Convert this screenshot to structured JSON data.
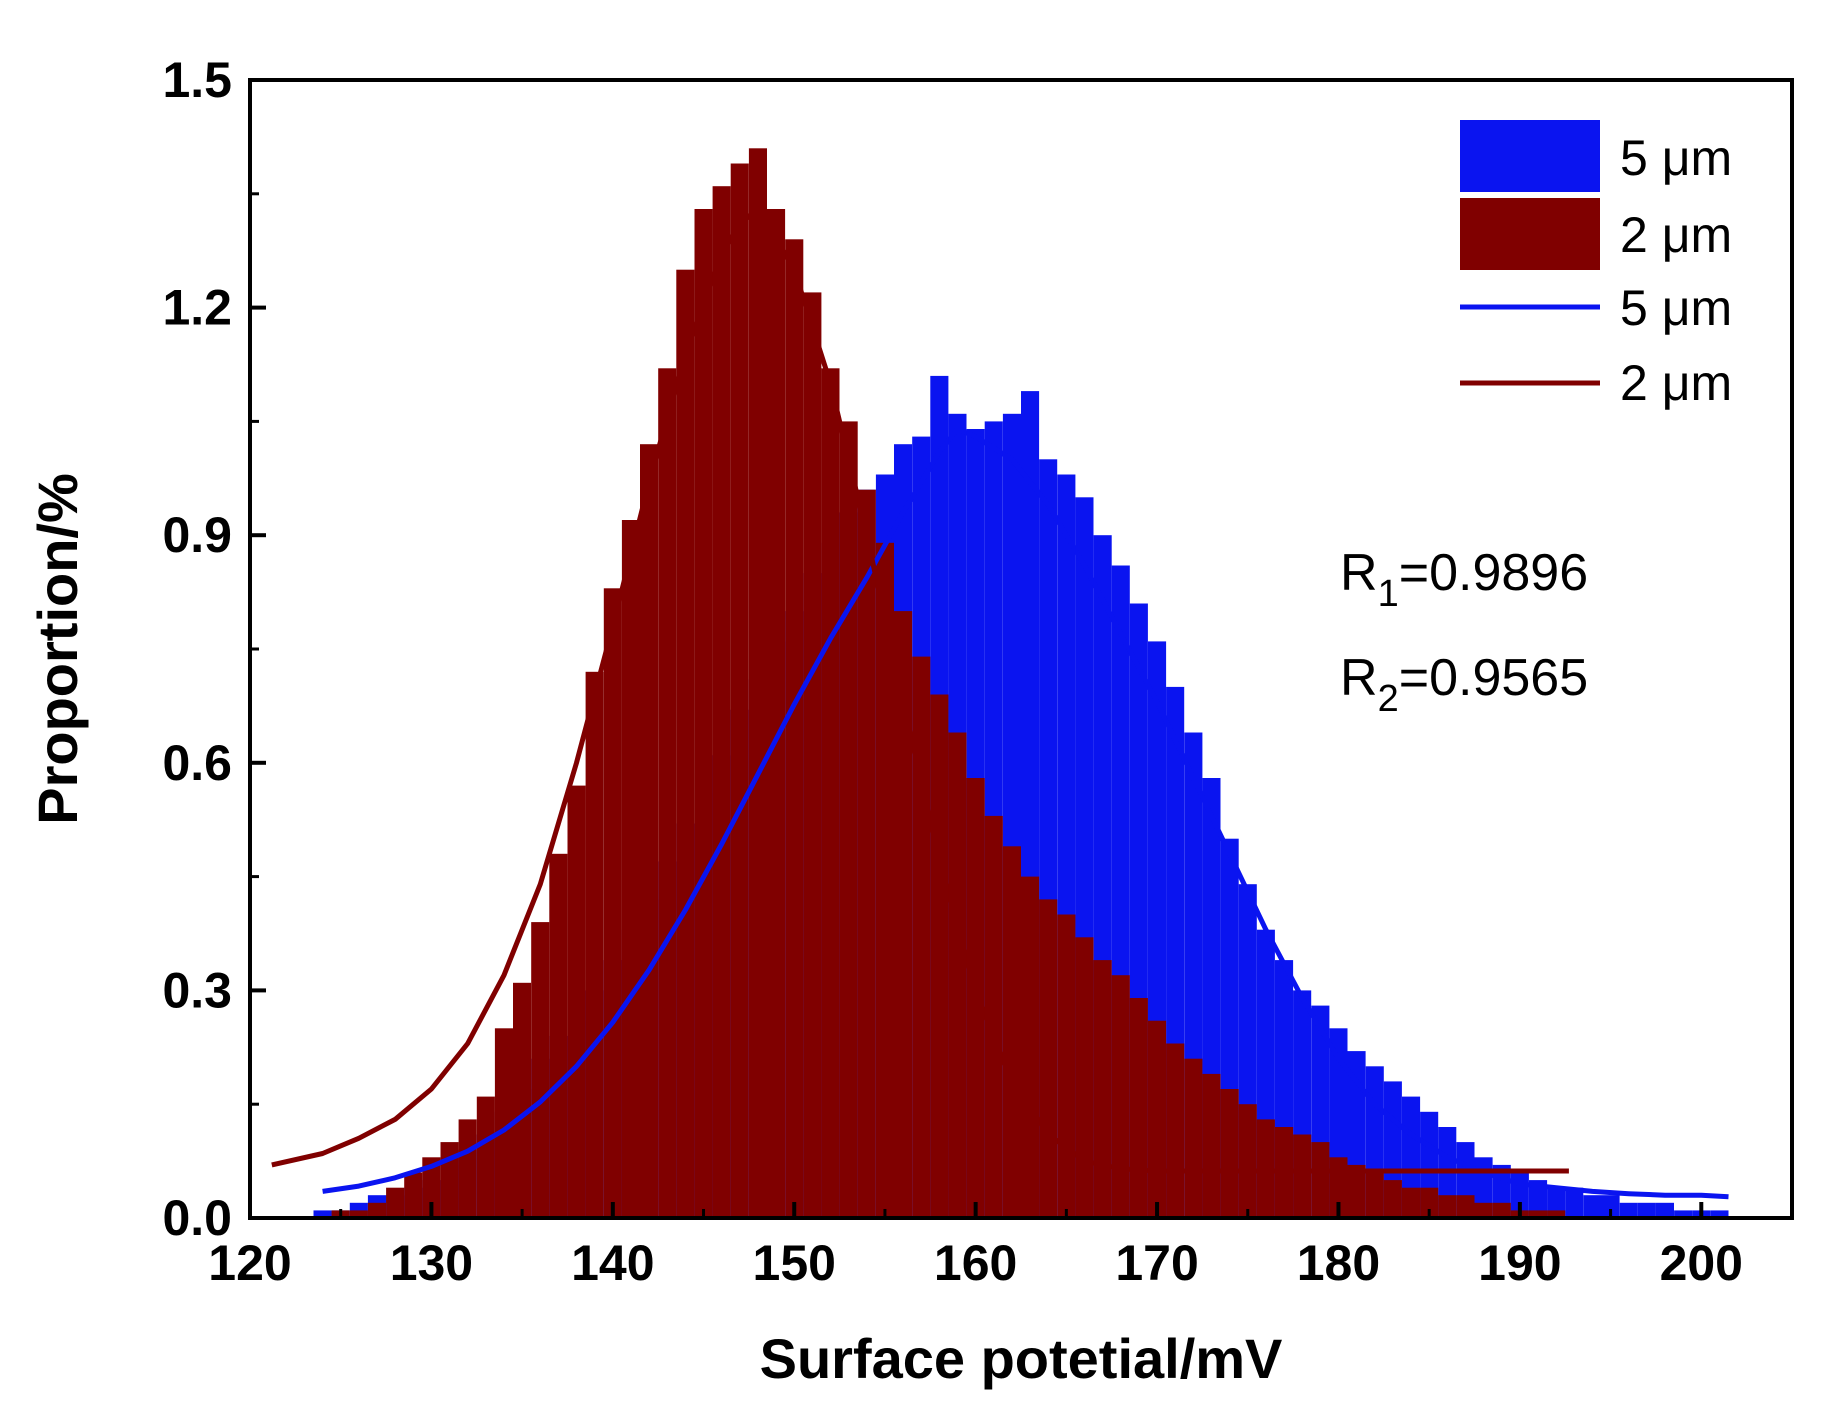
{
  "chart_data": {
    "type": "bar",
    "title": "",
    "xlabel": "Surface potetial/mV",
    "ylabel": "Proportion/%",
    "xlim": [
      120,
      205
    ],
    "ylim": [
      0,
      1.5
    ],
    "xticks": [
      120,
      130,
      140,
      150,
      160,
      170,
      180,
      190,
      200
    ],
    "xtick_labels": [
      "120",
      "130",
      "140",
      "150",
      "160",
      "170",
      "180",
      "190",
      "200"
    ],
    "yticks": [
      0.0,
      0.3,
      0.6,
      0.9,
      1.2,
      1.5
    ],
    "ytick_labels": [
      "0.0",
      "0.3",
      "0.6",
      "0.9",
      "1.2",
      "1.5"
    ],
    "grid": false,
    "legend_position": "top-right",
    "histograms": [
      {
        "name": "5 μm",
        "legend_label": "5 μm",
        "color": "#0a14f0",
        "bin_width": 0.4,
        "x": [
          124,
          125,
          126,
          127,
          128,
          129,
          130,
          131,
          132,
          133,
          134,
          135,
          136,
          137,
          138,
          139,
          140,
          141,
          142,
          143,
          144,
          145,
          146,
          147,
          148,
          149,
          150,
          151,
          152,
          153,
          154,
          155,
          156,
          157,
          158,
          159,
          160,
          161,
          162,
          163,
          164,
          165,
          166,
          167,
          168,
          169,
          170,
          171,
          172,
          173,
          174,
          175,
          176,
          177,
          178,
          179,
          180,
          181,
          182,
          183,
          184,
          185,
          186,
          187,
          188,
          189,
          190,
          191,
          192,
          193,
          194,
          195,
          196,
          197,
          198,
          199,
          200,
          201
        ],
        "values": [
          0.01,
          0.01,
          0.02,
          0.03,
          0.03,
          0.04,
          0.05,
          0.07,
          0.09,
          0.11,
          0.14,
          0.17,
          0.21,
          0.24,
          0.26,
          0.3,
          0.34,
          0.38,
          0.42,
          0.47,
          0.52,
          0.56,
          0.61,
          0.67,
          0.71,
          0.76,
          0.8,
          0.85,
          0.89,
          0.93,
          0.96,
          0.98,
          1.02,
          1.03,
          1.11,
          1.06,
          1.04,
          1.05,
          1.06,
          1.09,
          1.0,
          0.98,
          0.95,
          0.9,
          0.86,
          0.81,
          0.76,
          0.7,
          0.64,
          0.58,
          0.5,
          0.44,
          0.38,
          0.34,
          0.3,
          0.28,
          0.25,
          0.22,
          0.2,
          0.18,
          0.16,
          0.14,
          0.12,
          0.1,
          0.08,
          0.07,
          0.06,
          0.05,
          0.04,
          0.04,
          0.03,
          0.03,
          0.02,
          0.02,
          0.02,
          0.01,
          0.01,
          0.01
        ]
      },
      {
        "name": "2 μm",
        "legend_label": "2 μm",
        "color": "#800000",
        "bin_width": 0.4,
        "x": [
          124,
          125,
          126,
          127,
          128,
          129,
          130,
          131,
          132,
          133,
          134,
          135,
          136,
          137,
          138,
          139,
          140,
          141,
          142,
          143,
          144,
          145,
          146,
          147,
          148,
          149,
          150,
          151,
          152,
          153,
          154,
          155,
          156,
          157,
          158,
          159,
          160,
          161,
          162,
          163,
          164,
          165,
          166,
          167,
          168,
          169,
          170,
          171,
          172,
          173,
          174,
          175,
          176,
          177,
          178,
          179,
          180,
          181,
          182,
          183,
          184,
          185,
          186,
          187,
          188,
          189,
          190,
          191,
          192
        ],
        "values": [
          0.0,
          0.01,
          0.01,
          0.02,
          0.04,
          0.06,
          0.08,
          0.1,
          0.13,
          0.16,
          0.25,
          0.31,
          0.39,
          0.48,
          0.57,
          0.72,
          0.83,
          0.92,
          1.02,
          1.12,
          1.25,
          1.33,
          1.36,
          1.39,
          1.41,
          1.33,
          1.29,
          1.22,
          1.12,
          1.05,
          0.96,
          0.89,
          0.8,
          0.74,
          0.69,
          0.64,
          0.58,
          0.53,
          0.49,
          0.45,
          0.42,
          0.4,
          0.37,
          0.34,
          0.32,
          0.29,
          0.26,
          0.23,
          0.21,
          0.19,
          0.17,
          0.15,
          0.13,
          0.12,
          0.11,
          0.1,
          0.08,
          0.07,
          0.06,
          0.05,
          0.04,
          0.04,
          0.03,
          0.03,
          0.02,
          0.02,
          0.01,
          0.01,
          0.01
        ]
      }
    ],
    "series": [
      {
        "name": "5 μm",
        "legend_label": "5 μm",
        "type": "line",
        "color": "#0a14f0",
        "x": [
          124,
          126,
          128,
          130,
          132,
          134,
          136,
          138,
          140,
          142,
          144,
          146,
          148,
          150,
          152,
          154,
          156,
          158,
          159,
          160,
          162,
          164,
          166,
          168,
          170,
          172,
          174,
          176,
          178,
          180,
          182,
          184,
          186,
          188,
          190,
          192,
          194,
          196,
          198,
          200,
          201.5
        ],
        "values": [
          0.035,
          0.042,
          0.053,
          0.068,
          0.088,
          0.116,
          0.153,
          0.2,
          0.258,
          0.327,
          0.406,
          0.493,
          0.585,
          0.677,
          0.764,
          0.844,
          0.93,
          1.01,
          1.04,
          1.03,
          1.0,
          0.94,
          0.86,
          0.77,
          0.68,
          0.58,
          0.48,
          0.38,
          0.29,
          0.21,
          0.15,
          0.11,
          0.08,
          0.06,
          0.045,
          0.04,
          0.035,
          0.032,
          0.03,
          0.03,
          0.028
        ]
      },
      {
        "name": "2 μm",
        "legend_label": "2 μm",
        "type": "line",
        "color": "#800000",
        "x": [
          121.2,
          124,
          126,
          128,
          130,
          132,
          134,
          136,
          138,
          140,
          142,
          144,
          146,
          147,
          148,
          150,
          152,
          154,
          156,
          158,
          160,
          162,
          164,
          166,
          168,
          170,
          172,
          174,
          176,
          178,
          180,
          182,
          184,
          186,
          188,
          190,
          192.7
        ],
        "values": [
          0.07,
          0.085,
          0.105,
          0.13,
          0.17,
          0.23,
          0.32,
          0.44,
          0.6,
          0.78,
          0.97,
          1.14,
          1.27,
          1.31,
          1.33,
          1.25,
          1.1,
          0.9,
          0.68,
          0.47,
          0.3,
          0.18,
          0.11,
          0.075,
          0.065,
          0.062,
          0.062,
          0.062,
          0.062,
          0.062,
          0.062,
          0.062,
          0.062,
          0.062,
          0.062,
          0.062,
          0.062
        ]
      }
    ],
    "annotations": [
      {
        "label": "R",
        "subscript": "1",
        "value": "=0.9896"
      },
      {
        "label": "R",
        "subscript": "2",
        "value": "=0.9565"
      }
    ]
  }
}
